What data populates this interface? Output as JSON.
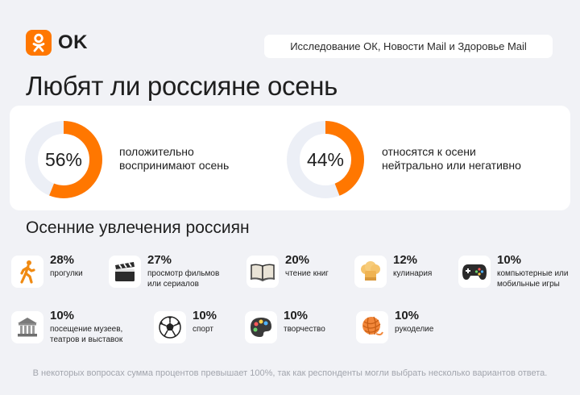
{
  "header": {
    "logo_text": "OK",
    "source": "Исследование ОК, Новости Mail и Здоровье Mail"
  },
  "title": "Любят ли россияне осень",
  "colors": {
    "accent": "#ff7700",
    "track": "#eceff6",
    "background": "#f1f2f6"
  },
  "stats": [
    {
      "value": "56%",
      "fraction": 0.56,
      "lines": [
        "положительно",
        "воспринимают осень"
      ]
    },
    {
      "value": "44%",
      "fraction": 0.44,
      "lines": [
        "относятся к осени",
        "нейтрально или негативно"
      ]
    }
  ],
  "hobbies_title": "Осенние увлечения россиян",
  "hobbies": [
    {
      "pct": "28%",
      "lines": [
        "прогулки"
      ],
      "icon": "walking-person-icon"
    },
    {
      "pct": "27%",
      "lines": [
        "просмотр фильмов",
        "или сериалов"
      ],
      "icon": "clapperboard-icon"
    },
    {
      "pct": "20%",
      "lines": [
        "чтение книг"
      ],
      "icon": "open-book-icon"
    },
    {
      "pct": "12%",
      "lines": [
        "кулинария"
      ],
      "icon": "chef-hat-icon"
    },
    {
      "pct": "10%",
      "lines": [
        "компьютерные или",
        "мобильные игры"
      ],
      "icon": "gamepad-icon"
    },
    {
      "pct": "10%",
      "lines": [
        "посещение музеев,",
        "театров и выставок"
      ],
      "icon": "museum-icon"
    },
    {
      "pct": "10%",
      "lines": [
        "спорт"
      ],
      "icon": "soccer-ball-icon"
    },
    {
      "pct": "10%",
      "lines": [
        "творчество"
      ],
      "icon": "paint-palette-icon"
    },
    {
      "pct": "10%",
      "lines": [
        "рукоделие"
      ],
      "icon": "yarn-ball-icon"
    }
  ],
  "footnote": "В некоторых вопросах сумма процентов превышает 100%, так как респонденты могли выбрать несколько вариантов ответа."
}
